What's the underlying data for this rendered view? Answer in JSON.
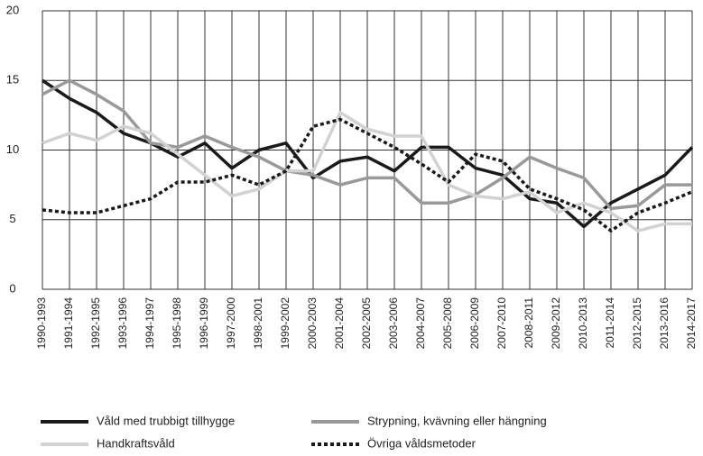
{
  "chart_data": {
    "type": "line",
    "categories": [
      "1990-1993",
      "1991-1994",
      "1992-1995",
      "1993-1996",
      "1994-1997",
      "1995-1998",
      "1996-1999",
      "1997-2000",
      "1998-2001",
      "1999-2002",
      "2000-2003",
      "2001-2004",
      "2002-2005",
      "2003-2006",
      "2004-2007",
      "2005-2008",
      "2006-2009",
      "2007-2010",
      "2008-2011",
      "2009-2012",
      "2010-2013",
      "2011-2014",
      "2012-2015",
      "2013-2016",
      "2014-2017"
    ],
    "series": [
      {
        "name": "Våld med trubbigt tillhygge",
        "color": "#1a1a1a",
        "dash": "solid",
        "values": [
          15,
          13.7,
          12.7,
          11.2,
          10.5,
          9.5,
          10.5,
          8.7,
          10,
          10.5,
          8,
          9.2,
          9.5,
          8.5,
          10.2,
          10.2,
          8.7,
          8.2,
          6.5,
          6.2,
          4.5,
          6.2,
          7.2,
          8.2,
          10.2
        ]
      },
      {
        "name": "Strypning, kvävning eller hängning",
        "color": "#999999",
        "dash": "solid",
        "values": [
          14,
          15,
          14,
          12.8,
          10.5,
          10.2,
          11,
          10.2,
          9.5,
          8.5,
          8.2,
          7.5,
          8,
          8,
          6.2,
          6.2,
          6.8,
          8,
          9.5,
          8.7,
          8,
          5.8,
          6,
          7.5,
          7.5
        ]
      },
      {
        "name": "Handkraftsvåld",
        "color": "#d2d2d2",
        "dash": "solid",
        "values": [
          10.5,
          11.2,
          10.7,
          11.7,
          11.2,
          9.7,
          8.2,
          6.7,
          7.2,
          8.5,
          8.5,
          12.7,
          11.5,
          11,
          11,
          7.5,
          6.7,
          6.5,
          7,
          5.5,
          6.2,
          5.5,
          4.2,
          4.7,
          4.7
        ]
      },
      {
        "name": "Övriga våldsmetoder",
        "color": "#1a1a1a",
        "dash": "dotted",
        "values": [
          5.7,
          5.5,
          5.5,
          6,
          6.5,
          7.7,
          7.7,
          8.2,
          7.5,
          8.5,
          11.7,
          12.2,
          11.2,
          10.2,
          9,
          7.7,
          9.7,
          9.2,
          7.2,
          6.5,
          5.7,
          4.2,
          5.5,
          6.2,
          7
        ]
      }
    ],
    "ylim": [
      0,
      20
    ],
    "yticks": [
      0,
      5,
      10,
      15,
      20
    ],
    "grid": true,
    "legend": "bottom"
  }
}
